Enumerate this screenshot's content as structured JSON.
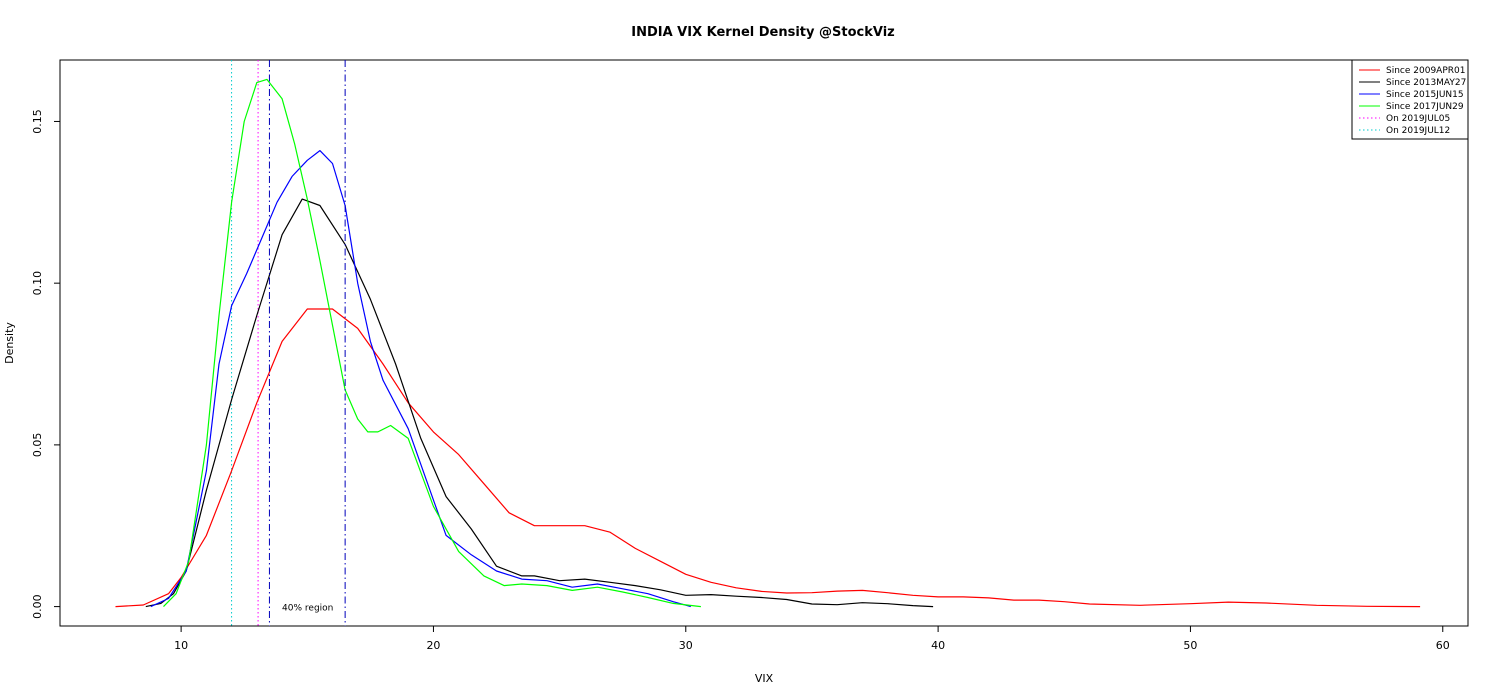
{
  "chart_data": {
    "type": "line",
    "title": "INDIA VIX Kernel Density @StockViz",
    "xlabel": "VIX",
    "ylabel": "Density",
    "xlim": [
      5.2,
      61.0
    ],
    "ylim": [
      -0.006,
      0.169
    ],
    "x_ticks": [
      10,
      20,
      30,
      40,
      50,
      60
    ],
    "x_tick_labels": [
      "10",
      "20",
      "30",
      "40",
      "50",
      "60"
    ],
    "y_ticks": [
      0.0,
      0.05,
      0.1,
      0.15
    ],
    "y_tick_labels": [
      "0.00",
      "0.05",
      "0.10",
      "0.15"
    ],
    "grid": false,
    "legend_position": "top-right",
    "annotation": {
      "text": "40% region",
      "x": 14.0,
      "y": 0.0
    },
    "series": [
      {
        "name": "Since 2009APR01",
        "color": "#ff0000",
        "style": "solid",
        "points": [
          [
            7.4,
            0
          ],
          [
            8.5,
            0.0005
          ],
          [
            9.5,
            0.004
          ],
          [
            10,
            0.009
          ],
          [
            11,
            0.022
          ],
          [
            12,
            0.042
          ],
          [
            13,
            0.063
          ],
          [
            14,
            0.082
          ],
          [
            15,
            0.092
          ],
          [
            16,
            0.092
          ],
          [
            17,
            0.086
          ],
          [
            18,
            0.075
          ],
          [
            19,
            0.063
          ],
          [
            20,
            0.054
          ],
          [
            21,
            0.047
          ],
          [
            22,
            0.038
          ],
          [
            23,
            0.029
          ],
          [
            24,
            0.025
          ],
          [
            25,
            0.025
          ],
          [
            26,
            0.025
          ],
          [
            27,
            0.023
          ],
          [
            28,
            0.018
          ],
          [
            29,
            0.014
          ],
          [
            30,
            0.01
          ],
          [
            31,
            0.0075
          ],
          [
            32,
            0.0058
          ],
          [
            33,
            0.0047
          ],
          [
            34,
            0.0042
          ],
          [
            35,
            0.0043
          ],
          [
            36,
            0.0048
          ],
          [
            37,
            0.005
          ],
          [
            38,
            0.0043
          ],
          [
            39,
            0.0035
          ],
          [
            40,
            0.003
          ],
          [
            41,
            0.003
          ],
          [
            42,
            0.0027
          ],
          [
            43,
            0.002
          ],
          [
            44,
            0.002
          ],
          [
            45,
            0.0015
          ],
          [
            46,
            0.0008
          ],
          [
            48,
            0.0004
          ],
          [
            50,
            0.0009
          ],
          [
            51.5,
            0.0014
          ],
          [
            53,
            0.0011
          ],
          [
            55,
            0.0004
          ],
          [
            57,
            0.0001
          ],
          [
            59.1,
            0
          ]
        ]
      },
      {
        "name": "Since 2013MAY27",
        "color": "#000000",
        "style": "solid",
        "points": [
          [
            8.6,
            0
          ],
          [
            9.2,
            0.001
          ],
          [
            9.7,
            0.004
          ],
          [
            10.2,
            0.011
          ],
          [
            11,
            0.036
          ],
          [
            12,
            0.064
          ],
          [
            13,
            0.09
          ],
          [
            14,
            0.115
          ],
          [
            14.8,
            0.126
          ],
          [
            15.5,
            0.124
          ],
          [
            16.5,
            0.112
          ],
          [
            17.5,
            0.095
          ],
          [
            18.5,
            0.075
          ],
          [
            19.5,
            0.052
          ],
          [
            20.5,
            0.034
          ],
          [
            21.5,
            0.024
          ],
          [
            22.5,
            0.0125
          ],
          [
            23.5,
            0.0095
          ],
          [
            24,
            0.0095
          ],
          [
            25,
            0.008
          ],
          [
            26,
            0.0085
          ],
          [
            27,
            0.0075
          ],
          [
            28,
            0.0065
          ],
          [
            29,
            0.0052
          ],
          [
            30,
            0.0035
          ],
          [
            31,
            0.0037
          ],
          [
            32,
            0.0032
          ],
          [
            33,
            0.0028
          ],
          [
            34,
            0.0022
          ],
          [
            35,
            0.0008
          ],
          [
            36,
            0.0006
          ],
          [
            37,
            0.0012
          ],
          [
            38,
            0.0009
          ],
          [
            39,
            0.0003
          ],
          [
            39.8,
            0
          ]
        ]
      },
      {
        "name": "Since 2015JUN15",
        "color": "#0000ff",
        "style": "solid",
        "points": [
          [
            8.8,
            0
          ],
          [
            9.5,
            0.0025
          ],
          [
            10.2,
            0.011
          ],
          [
            11,
            0.042
          ],
          [
            11.5,
            0.075
          ],
          [
            12,
            0.093
          ],
          [
            12.6,
            0.103
          ],
          [
            13.2,
            0.114
          ],
          [
            13.8,
            0.125
          ],
          [
            14.4,
            0.133
          ],
          [
            15,
            0.138
          ],
          [
            15.5,
            0.141
          ],
          [
            16,
            0.137
          ],
          [
            16.5,
            0.124
          ],
          [
            17,
            0.1
          ],
          [
            17.5,
            0.082
          ],
          [
            18,
            0.07
          ],
          [
            19,
            0.055
          ],
          [
            20,
            0.033
          ],
          [
            20.5,
            0.022
          ],
          [
            21.5,
            0.016
          ],
          [
            22.5,
            0.011
          ],
          [
            23.5,
            0.0085
          ],
          [
            24.5,
            0.008
          ],
          [
            25.5,
            0.006
          ],
          [
            26.5,
            0.007
          ],
          [
            27.5,
            0.0055
          ],
          [
            28.5,
            0.004
          ],
          [
            29.5,
            0.0015
          ],
          [
            30.2,
            0
          ]
        ]
      },
      {
        "name": "Since 2017JUN29",
        "color": "#00ff00",
        "style": "solid",
        "points": [
          [
            9.3,
            0
          ],
          [
            9.8,
            0.004
          ],
          [
            10.3,
            0.014
          ],
          [
            11,
            0.05
          ],
          [
            11.5,
            0.09
          ],
          [
            12,
            0.125
          ],
          [
            12.5,
            0.15
          ],
          [
            13,
            0.162
          ],
          [
            13.4,
            0.163
          ],
          [
            14,
            0.157
          ],
          [
            14.5,
            0.143
          ],
          [
            15,
            0.126
          ],
          [
            15.5,
            0.107
          ],
          [
            16,
            0.087
          ],
          [
            16.5,
            0.067
          ],
          [
            17,
            0.058
          ],
          [
            17.4,
            0.054
          ],
          [
            17.8,
            0.054
          ],
          [
            18.3,
            0.056
          ],
          [
            19,
            0.052
          ],
          [
            20,
            0.031
          ],
          [
            21,
            0.017
          ],
          [
            22,
            0.0095
          ],
          [
            22.8,
            0.0065
          ],
          [
            23.5,
            0.007
          ],
          [
            24.5,
            0.0065
          ],
          [
            25.5,
            0.005
          ],
          [
            26.5,
            0.006
          ],
          [
            27.5,
            0.0045
          ],
          [
            28.5,
            0.0028
          ],
          [
            29.5,
            0.001
          ],
          [
            30.6,
            0
          ]
        ]
      }
    ],
    "vlines": [
      {
        "name": "On 2019JUL05",
        "x": 13.05,
        "color": "#ff00ff",
        "style": "dotted"
      },
      {
        "name": "On 2019JUL12",
        "x": 12.0,
        "color": "#00cccc",
        "style": "dotted"
      }
    ],
    "region_lines": [
      {
        "x": 13.5,
        "color": "#0000bb",
        "style": "dashdot"
      },
      {
        "x": 16.5,
        "color": "#0000bb",
        "style": "dashdot"
      }
    ]
  }
}
